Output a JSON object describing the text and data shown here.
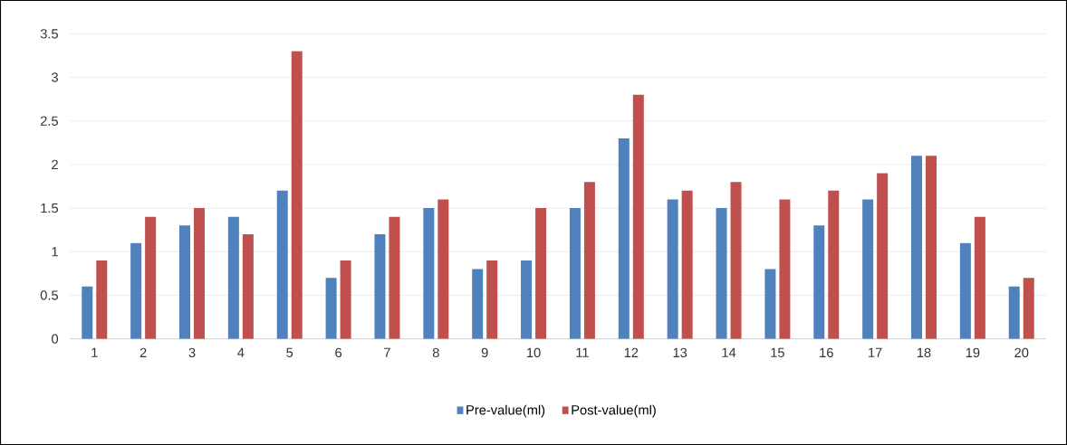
{
  "chart_data": {
    "type": "bar",
    "categories": [
      "1",
      "2",
      "3",
      "4",
      "5",
      "6",
      "7",
      "8",
      "9",
      "10",
      "11",
      "12",
      "13",
      "14",
      "15",
      "16",
      "17",
      "18",
      "19",
      "20"
    ],
    "series": [
      {
        "name": "Pre-value(ml)",
        "color": "#4f81bd",
        "values": [
          0.6,
          1.1,
          1.3,
          1.4,
          1.7,
          0.7,
          1.2,
          1.5,
          0.8,
          0.9,
          1.5,
          2.3,
          1.6,
          1.5,
          0.8,
          1.3,
          1.6,
          2.1,
          1.1,
          0.6
        ]
      },
      {
        "name": "Post-value(ml)",
        "color": "#c0504d",
        "values": [
          0.9,
          1.4,
          1.5,
          1.2,
          3.3,
          0.9,
          1.4,
          1.6,
          0.9,
          1.5,
          1.8,
          2.8,
          1.7,
          1.8,
          1.6,
          1.7,
          1.9,
          2.1,
          1.4,
          0.7
        ]
      }
    ],
    "ylim": [
      0,
      3.5
    ],
    "yticks": [
      0,
      0.5,
      1,
      1.5,
      2,
      2.5,
      3,
      3.5
    ],
    "grid": "y",
    "legend": "bottom"
  }
}
